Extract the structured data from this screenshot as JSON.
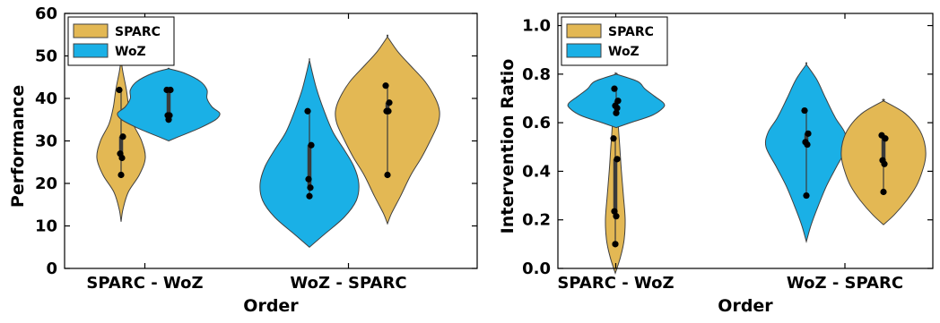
{
  "colors": {
    "SPARC": "#e3b854",
    "WoZ": "#1ab0e6",
    "outline": "#404040",
    "point": "#000000"
  },
  "chart_data": [
    {
      "type": "violin",
      "title": "",
      "xlabel": "Order",
      "ylabel": "Performance",
      "ylim": [
        0,
        60
      ],
      "yticks": [
        0,
        10,
        20,
        30,
        40,
        50,
        60
      ],
      "yticklabels": [
        "0",
        "10",
        "20",
        "30",
        "40",
        "50",
        "60"
      ],
      "categories": [
        "SPARC - WoZ",
        "WoZ - SPARC"
      ],
      "legend": {
        "position": "top-left",
        "entries": [
          "SPARC",
          "WoZ"
        ]
      },
      "grid": false,
      "groups": [
        {
          "category": "SPARC - WoZ",
          "series": "SPARC",
          "points": [
            42,
            31,
            27,
            26,
            22
          ],
          "quartiles": [
            26,
            31
          ],
          "density": [
            [
              11,
              0.0
            ],
            [
              14,
              0.08
            ],
            [
              18,
              0.3
            ],
            [
              22,
              0.75
            ],
            [
              26,
              1.0
            ],
            [
              30,
              0.85
            ],
            [
              34,
              0.5
            ],
            [
              38,
              0.32
            ],
            [
              42,
              0.22
            ],
            [
              46,
              0.08
            ],
            [
              49,
              0.0
            ]
          ]
        },
        {
          "category": "SPARC - WoZ",
          "series": "WoZ",
          "points": [
            42,
            42,
            36,
            36,
            35
          ],
          "quartiles": [
            36,
            42
          ],
          "density": [
            [
              30,
              0.0
            ],
            [
              31,
              0.2
            ],
            [
              33,
              0.6
            ],
            [
              35,
              0.92
            ],
            [
              36.5,
              1.0
            ],
            [
              38,
              0.85
            ],
            [
              40,
              0.75
            ],
            [
              42,
              0.75
            ],
            [
              44,
              0.62
            ],
            [
              46,
              0.3
            ],
            [
              47,
              0.0
            ]
          ]
        },
        {
          "category": "WoZ - SPARC",
          "series": "WoZ",
          "points": [
            37,
            29,
            21,
            19,
            17
          ],
          "quartiles": [
            19,
            29
          ],
          "density": [
            [
              5,
              0.0
            ],
            [
              8,
              0.3
            ],
            [
              12,
              0.7
            ],
            [
              16,
              0.95
            ],
            [
              20,
              1.0
            ],
            [
              24,
              0.9
            ],
            [
              28,
              0.7
            ],
            [
              32,
              0.48
            ],
            [
              37,
              0.3
            ],
            [
              42,
              0.15
            ],
            [
              46,
              0.06
            ],
            [
              49,
              0.0
            ]
          ]
        },
        {
          "category": "WoZ - SPARC",
          "series": "SPARC",
          "points": [
            43,
            39,
            37,
            37,
            22
          ],
          "quartiles": [
            37,
            39
          ],
          "density": [
            [
              10.5,
              0.0
            ],
            [
              13,
              0.08
            ],
            [
              17,
              0.25
            ],
            [
              22,
              0.45
            ],
            [
              26,
              0.65
            ],
            [
              30,
              0.82
            ],
            [
              34,
              0.97
            ],
            [
              37,
              1.0
            ],
            [
              40,
              0.92
            ],
            [
              44,
              0.72
            ],
            [
              48,
              0.42
            ],
            [
              51,
              0.2
            ],
            [
              54.5,
              0.0
            ]
          ]
        }
      ]
    },
    {
      "type": "violin",
      "title": "",
      "xlabel": "Order",
      "ylabel": "Intervention Ratio",
      "ylim": [
        0,
        1.05
      ],
      "yticks": [
        0,
        0.2,
        0.4,
        0.6,
        0.8,
        1.0
      ],
      "yticklabels": [
        "0.0",
        "0.2",
        "0.4",
        "0.6",
        "0.8",
        "1.0"
      ],
      "categories": [
        "SPARC - WoZ",
        "WoZ - SPARC"
      ],
      "legend": {
        "position": "top-left",
        "entries": [
          "SPARC",
          "WoZ"
        ]
      },
      "grid": false,
      "groups": [
        {
          "category": "SPARC - WoZ",
          "series": "SPARC",
          "points": [
            0.535,
            0.45,
            0.235,
            0.215,
            0.1
          ],
          "quartiles": [
            0.215,
            0.45
          ],
          "density": [
            [
              -0.02,
              0.0
            ],
            [
              0.05,
              0.55
            ],
            [
              0.12,
              0.9
            ],
            [
              0.2,
              1.0
            ],
            [
              0.3,
              0.82
            ],
            [
              0.4,
              0.62
            ],
            [
              0.5,
              0.45
            ],
            [
              0.6,
              0.28
            ],
            [
              0.7,
              0.12
            ],
            [
              0.795,
              0.0
            ]
          ]
        },
        {
          "category": "SPARC - WoZ",
          "series": "WoZ",
          "points": [
            0.74,
            0.69,
            0.67,
            0.66,
            0.64
          ],
          "quartiles": [
            0.66,
            0.69
          ],
          "density": [
            [
              0.58,
              0.0
            ],
            [
              0.6,
              0.3
            ],
            [
              0.63,
              0.75
            ],
            [
              0.66,
              0.98
            ],
            [
              0.68,
              1.0
            ],
            [
              0.71,
              0.8
            ],
            [
              0.74,
              0.6
            ],
            [
              0.77,
              0.45
            ],
            [
              0.8,
              0.0
            ]
          ]
        },
        {
          "category": "WoZ - SPARC",
          "series": "WoZ",
          "points": [
            0.65,
            0.555,
            0.52,
            0.51,
            0.3
          ],
          "quartiles": [
            0.51,
            0.555
          ],
          "density": [
            [
              0.11,
              0.0
            ],
            [
              0.18,
              0.12
            ],
            [
              0.26,
              0.3
            ],
            [
              0.34,
              0.5
            ],
            [
              0.42,
              0.75
            ],
            [
              0.5,
              1.0
            ],
            [
              0.56,
              0.95
            ],
            [
              0.62,
              0.72
            ],
            [
              0.7,
              0.48
            ],
            [
              0.78,
              0.25
            ],
            [
              0.84,
              0.0
            ]
          ]
        },
        {
          "category": "WoZ - SPARC",
          "series": "SPARC",
          "points": [
            0.548,
            0.535,
            0.445,
            0.43,
            0.315
          ],
          "quartiles": [
            0.43,
            0.535
          ],
          "density": [
            [
              0.18,
              0.0
            ],
            [
              0.22,
              0.25
            ],
            [
              0.28,
              0.55
            ],
            [
              0.34,
              0.78
            ],
            [
              0.4,
              0.92
            ],
            [
              0.46,
              1.0
            ],
            [
              0.52,
              0.97
            ],
            [
              0.58,
              0.82
            ],
            [
              0.64,
              0.5
            ],
            [
              0.69,
              0.0
            ]
          ]
        }
      ]
    }
  ]
}
